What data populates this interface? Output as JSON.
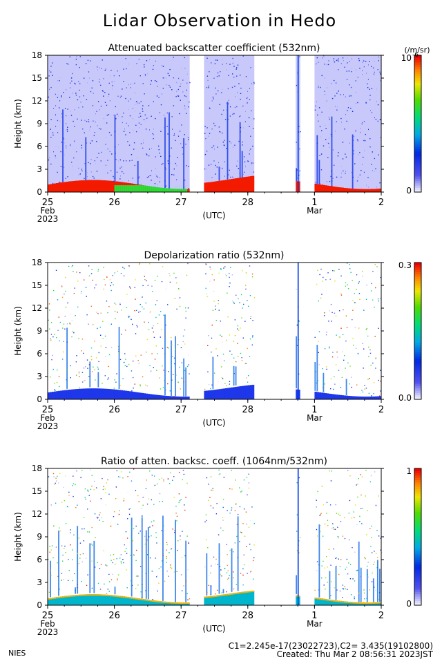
{
  "page_title": "Lidar Observation in Hedo",
  "footer": {
    "org": "NIES",
    "calib": "C1=2.245e-17(23022723),C2= 3.435(19102800)",
    "created": "Created: Thu Mar  2 08:56:31 2023JST"
  },
  "chart_data": [
    {
      "type": "heatmap",
      "title": "Attenuated backscatter coefficient (532nm)",
      "xlabel": "(UTC)",
      "ylabel": "Height (km)",
      "ylim": [
        0,
        18
      ],
      "yticks": [
        "0",
        "3",
        "6",
        "9",
        "12",
        "15",
        "18"
      ],
      "xticks": [
        {
          "day": 0,
          "label": "25",
          "sub": "Feb",
          "sub2": "2023"
        },
        {
          "day": 1,
          "label": "26"
        },
        {
          "day": 2,
          "label": "27"
        },
        {
          "day": 3,
          "label": "28"
        },
        {
          "day": 4,
          "label": "1",
          "sub": "Mar"
        },
        {
          "day": 5,
          "label": "2"
        }
      ],
      "xlim_days": [
        0,
        5
      ],
      "colorbar": {
        "min_label": "0",
        "max_label": "10",
        "exp": "-6",
        "unit": "(/m/sr)"
      },
      "colormap": "rainbow"
    },
    {
      "type": "heatmap",
      "title": "Depolarization ratio (532nm)",
      "xlabel": "(UTC)",
      "ylabel": "Height (km)",
      "ylim": [
        0,
        18
      ],
      "yticks": [
        "0",
        "3",
        "6",
        "9",
        "12",
        "15",
        "18"
      ],
      "xticks": [
        {
          "day": 0,
          "label": "25",
          "sub": "Feb",
          "sub2": "2023"
        },
        {
          "day": 1,
          "label": "26"
        },
        {
          "day": 2,
          "label": "27"
        },
        {
          "day": 3,
          "label": "28"
        },
        {
          "day": 4,
          "label": "1",
          "sub": "Mar"
        },
        {
          "day": 5,
          "label": "2"
        }
      ],
      "xlim_days": [
        0,
        5
      ],
      "colorbar": {
        "min_label": "0.0",
        "max_label": "0.3"
      },
      "colormap": "rainbow"
    },
    {
      "type": "heatmap",
      "title": "Ratio of atten. backsc. coeff. (1064nm/532nm)",
      "xlabel": "(UTC)",
      "ylabel": "Height (km)",
      "ylim": [
        0,
        18
      ],
      "yticks": [
        "0",
        "3",
        "6",
        "9",
        "12",
        "15",
        "18"
      ],
      "xticks": [
        {
          "day": 0,
          "label": "25",
          "sub": "Feb",
          "sub2": "2023"
        },
        {
          "day": 1,
          "label": "26"
        },
        {
          "day": 2,
          "label": "27"
        },
        {
          "day": 3,
          "label": "28"
        },
        {
          "day": 4,
          "label": "1",
          "sub": "Mar"
        },
        {
          "day": 5,
          "label": "2"
        }
      ],
      "xlim_days": [
        0,
        5
      ],
      "colorbar": {
        "min_label": "0",
        "max_label": "1"
      },
      "colormap": "rainbow"
    }
  ]
}
